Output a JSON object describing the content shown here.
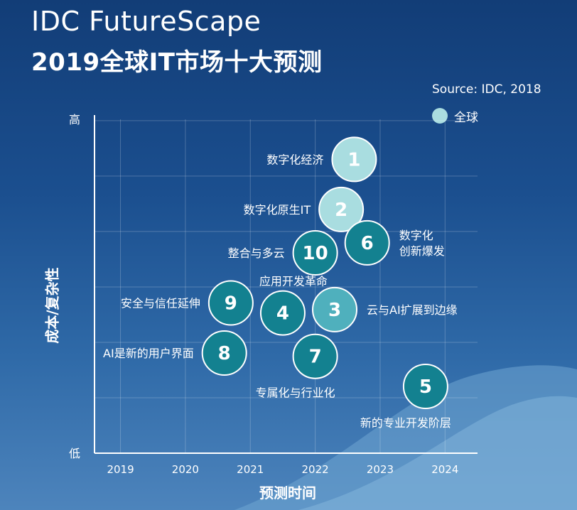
{
  "header": {
    "title": "IDC FutureScape",
    "subtitle": "2019全球IT市场十大预测",
    "source": "Source: IDC, 2018"
  },
  "legend": {
    "label": "全球",
    "color": "#a9dde0"
  },
  "colors": {
    "background_top": "#123d77",
    "background_bottom": "#4d84bc",
    "bubble_light": "#a9dde0",
    "bubble_mid": "#4fb0bd",
    "bubble_dark": "#138190"
  },
  "chart_data": {
    "type": "scatter",
    "title": "2019全球IT市场十大预测",
    "xlabel": "预测时间",
    "ylabel": "成本/复杂性",
    "x_ticks": [
      "2019",
      "2020",
      "2021",
      "2022",
      "2023",
      "2024"
    ],
    "y_ticks": [
      "高",
      "低"
    ],
    "xlim": [
      2018.6,
      2024.5
    ],
    "ylim": [
      0,
      100
    ],
    "grid": true,
    "legend_position": "top-right",
    "points": [
      {
        "id": "1",
        "x": 2022.6,
        "y": 88,
        "label": "数字化经济",
        "label_side": "left",
        "shade": "light"
      },
      {
        "id": "2",
        "x": 2022.4,
        "y": 73,
        "label": "数字化原生IT",
        "label_side": "left",
        "shade": "light"
      },
      {
        "id": "10",
        "x": 2022.0,
        "y": 60,
        "label": "整合与多云",
        "label_side": "left",
        "shade": "dark"
      },
      {
        "id": "6",
        "x": 2022.8,
        "y": 63,
        "label": "数字化\n创新爆发",
        "label_side": "right",
        "shade": "dark"
      },
      {
        "id": "9",
        "x": 2020.7,
        "y": 45,
        "label": "安全与信任延伸",
        "label_side": "left",
        "shade": "dark"
      },
      {
        "id": "4",
        "x": 2021.5,
        "y": 42,
        "label": "应用开发革命",
        "label_side": "above",
        "shade": "dark"
      },
      {
        "id": "3",
        "x": 2022.3,
        "y": 43,
        "label": "云与AI扩展到边缘",
        "label_side": "right",
        "shade": "mid"
      },
      {
        "id": "8",
        "x": 2020.6,
        "y": 30,
        "label": "AI是新的用户界面",
        "label_side": "left",
        "shade": "dark"
      },
      {
        "id": "7",
        "x": 2022.0,
        "y": 29,
        "label": "专属化与行业化",
        "label_side": "below",
        "shade": "dark"
      },
      {
        "id": "5",
        "x": 2023.7,
        "y": 20,
        "label": "新的专业开发阶层",
        "label_side": "below",
        "shade": "dark"
      }
    ]
  }
}
